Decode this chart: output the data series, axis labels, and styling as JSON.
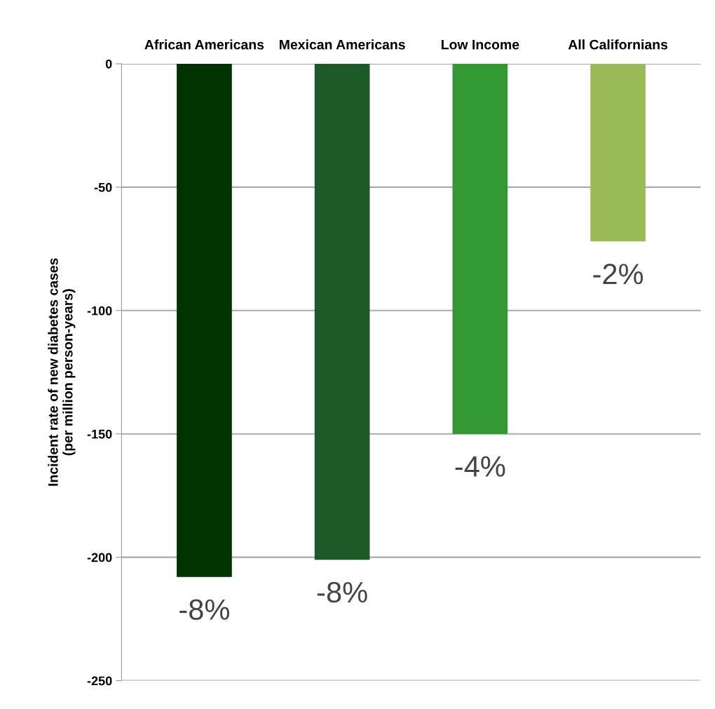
{
  "chart_data": {
    "type": "bar",
    "ylabel": "Incident rate of new diabetes cases\n(per million person-years)",
    "categories": [
      "African Americans",
      "Mexican Americans",
      "Low Income",
      "All Californians"
    ],
    "values": [
      -208,
      -201,
      -150,
      -72
    ],
    "colors": [
      "#003300",
      "#1e5a28",
      "#339933",
      "#9bbb59"
    ],
    "annotations": [
      {
        "text": "-8%",
        "x": "African Americans",
        "y": -208
      },
      {
        "text": "-8%",
        "x": "Mexican Americans",
        "y": -201
      },
      {
        "text": "-4%",
        "x": "Low Income",
        "y": -150
      },
      {
        "text": "-2%",
        "x": "All Californians",
        "y": -72
      }
    ],
    "ylim": [
      -250,
      0
    ],
    "yticks": [
      -250,
      -200,
      -150,
      -100,
      -50,
      0
    ],
    "grid": "y"
  }
}
